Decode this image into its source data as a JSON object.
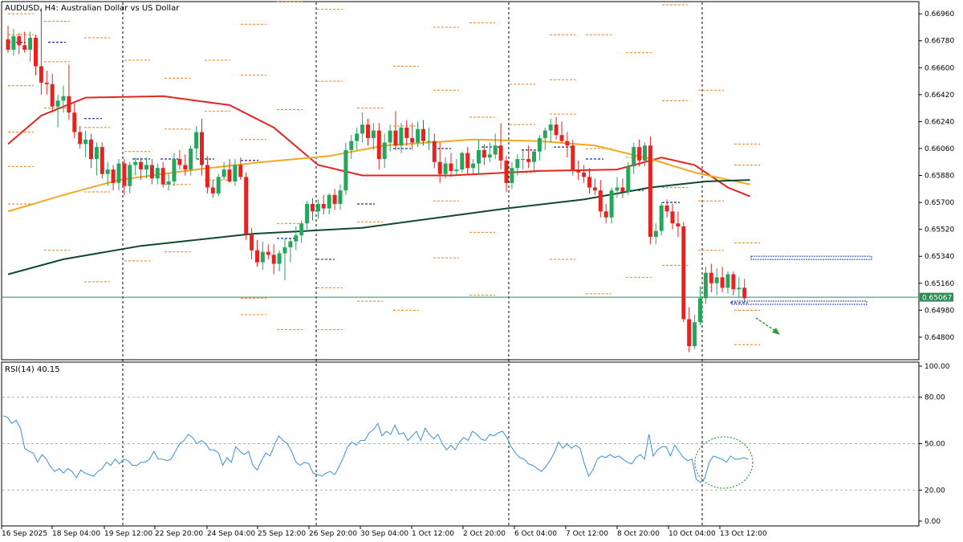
{
  "title": "AUDUSD, H4:  Australian Dollar vs US Dollar",
  "current_price": "0.65067",
  "colors": {
    "bull": "#26a65b",
    "bear": "#e8231f",
    "ma_fast": "#e52420",
    "ma_mid": "#f5a623",
    "ma_slow": "#0f4a2c",
    "rsi": "#3a8fd6",
    "level": "#f07f1a",
    "pivot": "#1a2a8c",
    "price_line": "#2e8b57",
    "zone": "#1f3cd6",
    "arrow": "#2e9d3a"
  },
  "chart_data": [
    {
      "type": "candlestick",
      "symbol": "AUDUSD",
      "timeframe": "H4",
      "ylim": [
        0.6466,
        0.6702
      ],
      "y_ticks": [
        "0.66960",
        "0.66780",
        "0.66600",
        "0.66420",
        "0.66240",
        "0.66060",
        "0.65880",
        "0.65700",
        "0.65520",
        "0.65340",
        "0.65160",
        "0.64980",
        "0.64800"
      ],
      "x_ticks": [
        "16 Sep 2025",
        "18 Sep 04:00",
        "19 Sep 12:00",
        "22 Sep 20:00",
        "24 Sep 04:00",
        "25 Sep 12:00",
        "26 Sep 20:00",
        "30 Sep 04:00",
        "1 Oct 12:00",
        "2 Oct 20:00",
        "6 Oct 04:00",
        "7 Oct 12:00",
        "8 Oct 20:00",
        "10 Oct 04:00",
        "13 Oct 12:00"
      ],
      "candles": [
        [
          0.6679,
          0.6688,
          0.667,
          0.6672
        ],
        [
          0.6672,
          0.6686,
          0.6668,
          0.6681
        ],
        [
          0.6681,
          0.6683,
          0.6669,
          0.6675
        ],
        [
          0.6675,
          0.6684,
          0.667,
          0.6672
        ],
        [
          0.6672,
          0.6684,
          0.6664,
          0.668
        ],
        [
          0.668,
          0.6682,
          0.6655,
          0.6661
        ],
        [
          0.6661,
          0.67,
          0.6642,
          0.665
        ],
        [
          0.665,
          0.6658,
          0.6642,
          0.6649
        ],
        [
          0.6649,
          0.6656,
          0.663,
          0.6634
        ],
        [
          0.6634,
          0.6642,
          0.662,
          0.6638
        ],
        [
          0.6638,
          0.6648,
          0.663,
          0.6641
        ],
        [
          0.6641,
          0.6662,
          0.6625,
          0.663
        ],
        [
          0.663,
          0.6636,
          0.6613,
          0.6617
        ],
        [
          0.6617,
          0.6621,
          0.6606,
          0.6609
        ],
        [
          0.6609,
          0.6618,
          0.66,
          0.6612
        ],
        [
          0.6612,
          0.6616,
          0.6593,
          0.6599
        ],
        [
          0.6599,
          0.661,
          0.6588,
          0.6607
        ],
        [
          0.6607,
          0.661,
          0.6586,
          0.6589
        ],
        [
          0.6589,
          0.6597,
          0.6581,
          0.6592
        ],
        [
          0.6592,
          0.6595,
          0.6578,
          0.6583
        ],
        [
          0.6583,
          0.6599,
          0.6578,
          0.6596
        ],
        [
          0.6596,
          0.6599,
          0.6575,
          0.6581
        ],
        [
          0.6581,
          0.6597,
          0.6576,
          0.6595
        ],
        [
          0.6595,
          0.66,
          0.6588,
          0.6597
        ],
        [
          0.6597,
          0.66,
          0.6585,
          0.6592
        ],
        [
          0.6592,
          0.66,
          0.6586,
          0.6595
        ],
        [
          0.6595,
          0.6599,
          0.6582,
          0.6586
        ],
        [
          0.6586,
          0.6596,
          0.6582,
          0.6593
        ],
        [
          0.6593,
          0.6597,
          0.658,
          0.6582
        ],
        [
          0.6582,
          0.6589,
          0.6578,
          0.6584
        ],
        [
          0.6584,
          0.6603,
          0.6581,
          0.6599
        ],
        [
          0.6599,
          0.6605,
          0.6592,
          0.6595
        ],
        [
          0.6595,
          0.6602,
          0.6588,
          0.6592
        ],
        [
          0.6592,
          0.6608,
          0.6588,
          0.6606
        ],
        [
          0.6606,
          0.6621,
          0.6599,
          0.6617
        ],
        [
          0.6617,
          0.6626,
          0.6588,
          0.6595
        ],
        [
          0.6595,
          0.6601,
          0.6576,
          0.658
        ],
        [
          0.658,
          0.6585,
          0.6573,
          0.6576
        ],
        [
          0.6576,
          0.6589,
          0.6574,
          0.6587
        ],
        [
          0.6587,
          0.6597,
          0.6585,
          0.6592
        ],
        [
          0.6592,
          0.6599,
          0.6583,
          0.6584
        ],
        [
          0.6584,
          0.6599,
          0.6581,
          0.6595
        ],
        [
          0.6595,
          0.66,
          0.6585,
          0.6587
        ],
        [
          0.6587,
          0.659,
          0.6545,
          0.6549
        ],
        [
          0.6549,
          0.6553,
          0.6532,
          0.6538
        ],
        [
          0.6538,
          0.6545,
          0.6527,
          0.653
        ],
        [
          0.653,
          0.6544,
          0.6525,
          0.6537
        ],
        [
          0.6537,
          0.6542,
          0.6532,
          0.6535
        ],
        [
          0.6535,
          0.6542,
          0.6522,
          0.6529
        ],
        [
          0.6529,
          0.6538,
          0.6524,
          0.6536
        ],
        [
          0.6536,
          0.6546,
          0.6518,
          0.654
        ],
        [
          0.654,
          0.6546,
          0.653,
          0.6544
        ],
        [
          0.6544,
          0.6554,
          0.6538,
          0.6548
        ],
        [
          0.6548,
          0.6558,
          0.6543,
          0.6556
        ],
        [
          0.6556,
          0.6571,
          0.6552,
          0.6569
        ],
        [
          0.6569,
          0.6573,
          0.6558,
          0.6564
        ],
        [
          0.6564,
          0.6572,
          0.6559,
          0.6569
        ],
        [
          0.6569,
          0.6575,
          0.6562,
          0.6566
        ],
        [
          0.6566,
          0.6576,
          0.6562,
          0.6575
        ],
        [
          0.6575,
          0.6579,
          0.6565,
          0.6569
        ],
        [
          0.6569,
          0.6582,
          0.6565,
          0.6578
        ],
        [
          0.6578,
          0.661,
          0.6575,
          0.6605
        ],
        [
          0.6605,
          0.6615,
          0.6599,
          0.6611
        ],
        [
          0.6611,
          0.662,
          0.6605,
          0.6616
        ],
        [
          0.6616,
          0.663,
          0.661,
          0.6622
        ],
        [
          0.6622,
          0.6626,
          0.6608,
          0.6613
        ],
        [
          0.6613,
          0.6623,
          0.6605,
          0.6618
        ],
        [
          0.6618,
          0.6623,
          0.6592,
          0.6599
        ],
        [
          0.6599,
          0.6616,
          0.6593,
          0.661
        ],
        [
          0.661,
          0.6622,
          0.6604,
          0.6618
        ],
        [
          0.6618,
          0.6631,
          0.6605,
          0.6608
        ],
        [
          0.6608,
          0.6623,
          0.6603,
          0.662
        ],
        [
          0.662,
          0.6625,
          0.6608,
          0.6613
        ],
        [
          0.6613,
          0.6623,
          0.6605,
          0.661
        ],
        [
          0.661,
          0.6624,
          0.6607,
          0.6619
        ],
        [
          0.6619,
          0.6625,
          0.6608,
          0.6611
        ],
        [
          0.6611,
          0.662,
          0.6605,
          0.6611
        ],
        [
          0.6611,
          0.6616,
          0.6593,
          0.6597
        ],
        [
          0.6597,
          0.661,
          0.6583,
          0.6589
        ],
        [
          0.6589,
          0.66,
          0.6586,
          0.6596
        ],
        [
          0.6596,
          0.6603,
          0.6587,
          0.6591
        ],
        [
          0.6591,
          0.6599,
          0.6588,
          0.6592
        ],
        [
          0.6592,
          0.6604,
          0.659,
          0.6603
        ],
        [
          0.6603,
          0.6607,
          0.6589,
          0.6593
        ],
        [
          0.6593,
          0.6599,
          0.6589,
          0.6596
        ],
        [
          0.6596,
          0.6612,
          0.6589,
          0.6605
        ],
        [
          0.6605,
          0.6609,
          0.6595,
          0.66
        ],
        [
          0.66,
          0.661,
          0.6597,
          0.6602
        ],
        [
          0.6602,
          0.6616,
          0.6599,
          0.6608
        ],
        [
          0.6608,
          0.6623,
          0.6592,
          0.6598
        ],
        [
          0.6598,
          0.6601,
          0.6577,
          0.6583
        ],
        [
          0.6583,
          0.6597,
          0.6579,
          0.6593
        ],
        [
          0.6593,
          0.6602,
          0.6588,
          0.6599
        ],
        [
          0.6599,
          0.6605,
          0.6592,
          0.6599
        ],
        [
          0.6599,
          0.6608,
          0.6593,
          0.6597
        ],
        [
          0.6597,
          0.6605,
          0.6591,
          0.6604
        ],
        [
          0.6604,
          0.6615,
          0.6598,
          0.6613
        ],
        [
          0.6613,
          0.662,
          0.6605,
          0.6618
        ],
        [
          0.6618,
          0.6626,
          0.661,
          0.6622
        ],
        [
          0.6622,
          0.6627,
          0.6612,
          0.6615
        ],
        [
          0.6615,
          0.6624,
          0.661,
          0.6611
        ],
        [
          0.6611,
          0.6617,
          0.66,
          0.6608
        ],
        [
          0.6608,
          0.6612,
          0.6588,
          0.6592
        ],
        [
          0.6592,
          0.6598,
          0.6585,
          0.659
        ],
        [
          0.659,
          0.6595,
          0.6583,
          0.6587
        ],
        [
          0.6587,
          0.6593,
          0.6576,
          0.658
        ],
        [
          0.658,
          0.6586,
          0.6575,
          0.6578
        ],
        [
          0.6578,
          0.6585,
          0.656,
          0.6564
        ],
        [
          0.6564,
          0.6569,
          0.6556,
          0.656
        ],
        [
          0.656,
          0.658,
          0.6556,
          0.6578
        ],
        [
          0.6578,
          0.6587,
          0.6573,
          0.658
        ],
        [
          0.658,
          0.6586,
          0.6573,
          0.6577
        ],
        [
          0.6577,
          0.6597,
          0.6575,
          0.6594
        ],
        [
          0.6594,
          0.661,
          0.6589,
          0.6607
        ],
        [
          0.6607,
          0.6612,
          0.6594,
          0.6598
        ],
        [
          0.6598,
          0.661,
          0.6594,
          0.6608
        ],
        [
          0.6608,
          0.6614,
          0.6542,
          0.6547
        ],
        [
          0.6547,
          0.6556,
          0.6542,
          0.6551
        ],
        [
          0.6551,
          0.657,
          0.6548,
          0.6568
        ],
        [
          0.6568,
          0.6572,
          0.656,
          0.6564
        ],
        [
          0.6564,
          0.6569,
          0.6552,
          0.6556
        ],
        [
          0.6556,
          0.6564,
          0.6547,
          0.6554
        ],
        [
          0.6554,
          0.6557,
          0.649,
          0.6492
        ],
        [
          0.6492,
          0.65,
          0.647,
          0.6474
        ],
        [
          0.6474,
          0.6495,
          0.6472,
          0.649
        ],
        [
          0.649,
          0.6514,
          0.6488,
          0.6506
        ],
        [
          0.6506,
          0.6527,
          0.6502,
          0.6523
        ],
        [
          0.6523,
          0.6529,
          0.651,
          0.6516
        ],
        [
          0.6516,
          0.6526,
          0.6508,
          0.652
        ],
        [
          0.652,
          0.6527,
          0.651,
          0.6513
        ],
        [
          0.6513,
          0.6524,
          0.6509,
          0.6522
        ],
        [
          0.6522,
          0.6524,
          0.6508,
          0.6512
        ],
        [
          0.6512,
          0.652,
          0.6506,
          0.6513
        ],
        [
          0.6513,
          0.6519,
          0.6503,
          0.6506
        ]
      ],
      "moving_averages": [
        {
          "color": "#e52420",
          "points": [
            [
              0,
              0.6609
            ],
            [
              6,
              0.6628
            ],
            [
              14,
              0.664
            ],
            [
              28,
              0.6641
            ],
            [
              40,
              0.6635
            ],
            [
              48,
              0.662
            ],
            [
              56,
              0.6595
            ],
            [
              64,
              0.6588
            ],
            [
              80,
              0.6588
            ],
            [
              96,
              0.6591
            ],
            [
              110,
              0.6592
            ],
            [
              118,
              0.66
            ],
            [
              124,
              0.6595
            ],
            [
              130,
              0.658
            ],
            [
              134,
              0.6574
            ]
          ]
        },
        {
          "color": "#f5a623",
          "points": [
            [
              0,
              0.6564
            ],
            [
              10,
              0.6575
            ],
            [
              20,
              0.6585
            ],
            [
              34,
              0.6592
            ],
            [
              46,
              0.6597
            ],
            [
              58,
              0.6601
            ],
            [
              68,
              0.6608
            ],
            [
              84,
              0.6612
            ],
            [
              96,
              0.6611
            ],
            [
              106,
              0.6608
            ],
            [
              116,
              0.6599
            ],
            [
              124,
              0.659
            ],
            [
              134,
              0.6582
            ]
          ]
        },
        {
          "color": "#0f4a2c",
          "points": [
            [
              0,
              0.6522
            ],
            [
              10,
              0.6532
            ],
            [
              24,
              0.6541
            ],
            [
              44,
              0.6549
            ],
            [
              64,
              0.6553
            ],
            [
              76,
              0.6559
            ],
            [
              90,
              0.6566
            ],
            [
              104,
              0.6572
            ],
            [
              116,
              0.658
            ],
            [
              126,
              0.6584
            ],
            [
              134,
              0.6585
            ]
          ]
        }
      ]
    },
    {
      "type": "line",
      "title": "RSI(14) 40.15",
      "ylim": [
        0,
        100
      ],
      "y_ticks": [
        "100.00",
        "80.00",
        "50.00",
        "20.00",
        "0.00"
      ],
      "levels": [
        80,
        50,
        20
      ],
      "series": [
        {
          "values": [
            68,
            67,
            63,
            65,
            60,
            47,
            45,
            44,
            38,
            43,
            40,
            35,
            32,
            34,
            31,
            34,
            32,
            28,
            33,
            31,
            30,
            29,
            32,
            34,
            38,
            36,
            40,
            37,
            40,
            39,
            36,
            36,
            38,
            38,
            40,
            45,
            40,
            40,
            39,
            40,
            45,
            50,
            52,
            56,
            54,
            50,
            52,
            50,
            46,
            46,
            44,
            36,
            41,
            38,
            48,
            45,
            43,
            45,
            36,
            33,
            39,
            44,
            42,
            49,
            55,
            52,
            50,
            45,
            38,
            36,
            38,
            37,
            31,
            30,
            29,
            31,
            32,
            30,
            35,
            41,
            48,
            51,
            49,
            52,
            52,
            57,
            59,
            63,
            55,
            58,
            56,
            62,
            56,
            57,
            52,
            55,
            58,
            52,
            60,
            56,
            53,
            56,
            50,
            46,
            49,
            46,
            51,
            54,
            52,
            58,
            56,
            53,
            52,
            56,
            55,
            57,
            58,
            54,
            48,
            44,
            41,
            40,
            37,
            36,
            34,
            32,
            35,
            39,
            44,
            51,
            47,
            50,
            47,
            49,
            47,
            37,
            29,
            33,
            40,
            42,
            41,
            43,
            41,
            42,
            40,
            38,
            37,
            41,
            43,
            40,
            56,
            42,
            46,
            48,
            48,
            42,
            49,
            45,
            41,
            39,
            40,
            27,
            25,
            28,
            38,
            42,
            41,
            40,
            38,
            42,
            40,
            40,
            41,
            40
          ]
        }
      ]
    }
  ]
}
